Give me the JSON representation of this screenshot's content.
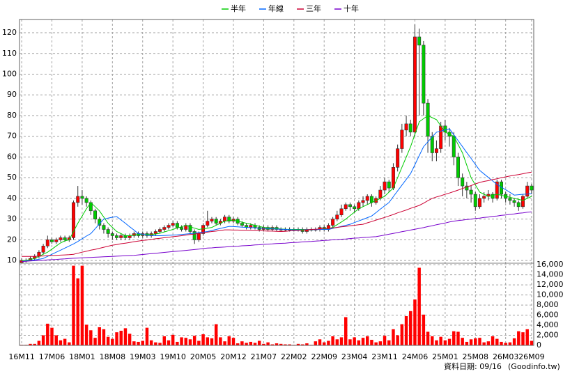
{
  "chart_data": {
    "type": "candlestick",
    "categories": [
      "16M11",
      null,
      null,
      null,
      null,
      null,
      null,
      "17M06",
      null,
      null,
      null,
      null,
      null,
      null,
      "18M01",
      null,
      null,
      null,
      null,
      null,
      null,
      "18M08",
      null,
      null,
      null,
      null,
      null,
      null,
      "19M03",
      null,
      null,
      null,
      null,
      null,
      null,
      "19M10",
      null,
      null,
      null,
      null,
      null,
      null,
      "20M05",
      null,
      null,
      null,
      null,
      null,
      null,
      "20M12",
      null,
      null,
      null,
      null,
      null,
      null,
      "21M07",
      null,
      null,
      null,
      null,
      null,
      null,
      "22M02",
      null,
      null,
      null,
      null,
      null,
      null,
      "22M09",
      null,
      null,
      null,
      null,
      null,
      null,
      "23M04",
      null,
      null,
      null,
      null,
      null,
      null,
      "23M11",
      null,
      null,
      null,
      null,
      null,
      null,
      "24M06",
      null,
      null,
      null,
      null,
      null,
      null,
      "25M01",
      null,
      null,
      null,
      null,
      null,
      null,
      "25M08",
      null,
      null,
      null,
      null,
      null,
      null,
      "26M03",
      null,
      null,
      null,
      null,
      null,
      "26M09"
    ],
    "open": [
      9,
      10,
      10,
      11,
      12,
      14,
      17,
      20,
      19,
      20,
      21,
      20,
      21,
      38,
      41,
      40,
      38,
      34,
      30,
      27,
      25,
      23,
      22,
      21,
      22,
      21,
      22,
      23,
      22,
      23,
      22,
      23,
      24,
      25,
      26,
      27,
      28,
      26,
      25,
      27,
      24,
      20,
      23,
      27,
      29,
      30,
      28,
      29,
      31,
      29,
      30,
      28,
      27,
      26,
      27,
      26,
      25,
      26,
      25,
      26,
      25,
      25,
      25,
      25,
      25,
      25,
      24,
      25,
      25,
      25,
      26,
      25,
      27,
      30,
      32,
      35,
      37,
      36,
      35,
      38,
      39,
      41,
      38,
      40,
      44,
      48,
      45,
      55,
      64,
      73,
      76,
      72,
      118,
      114,
      86,
      70,
      62,
      64,
      75,
      72,
      70,
      60,
      50,
      46,
      44,
      42,
      36,
      40,
      41,
      42,
      40,
      48,
      42,
      40,
      39,
      38,
      36,
      41,
      46
    ],
    "high": [
      11,
      11,
      12,
      13,
      15,
      18,
      22,
      21,
      21,
      22,
      22,
      22,
      39,
      46,
      44,
      41,
      39,
      35,
      31,
      28,
      26,
      24,
      23,
      23,
      23,
      23,
      24,
      24,
      24,
      24,
      24,
      25,
      26,
      27,
      28,
      29,
      29,
      27,
      28,
      28,
      25,
      24,
      28,
      34,
      31,
      31,
      30,
      32,
      32,
      31,
      31,
      29,
      28,
      28,
      28,
      27,
      27,
      27,
      27,
      27,
      26,
      26,
      26,
      26,
      26,
      26,
      26,
      26,
      26,
      27,
      27,
      28,
      31,
      34,
      37,
      38,
      38,
      37,
      39,
      41,
      42,
      42,
      41,
      46,
      50,
      49,
      57,
      66,
      76,
      80,
      78,
      124,
      122,
      116,
      88,
      72,
      68,
      77,
      78,
      74,
      72,
      62,
      52,
      48,
      46,
      43,
      42,
      43,
      44,
      43,
      49,
      49,
      43,
      42,
      40,
      39,
      42,
      48,
      47
    ],
    "low": [
      9,
      9,
      10,
      10,
      11,
      13,
      16,
      18,
      18,
      19,
      19,
      19,
      20,
      36,
      37,
      36,
      32,
      28,
      25,
      23,
      21,
      20,
      20,
      20,
      20,
      20,
      21,
      21,
      21,
      21,
      21,
      22,
      23,
      24,
      25,
      26,
      25,
      24,
      24,
      23,
      18,
      19,
      22,
      26,
      28,
      27,
      27,
      28,
      28,
      28,
      27,
      26,
      25,
      25,
      25,
      24,
      24,
      24,
      24,
      24,
      24,
      24,
      24,
      24,
      24,
      23,
      23,
      24,
      24,
      24,
      24,
      24,
      26,
      29,
      31,
      34,
      34,
      33,
      34,
      36,
      37,
      36,
      37,
      39,
      42,
      43,
      44,
      53,
      62,
      70,
      70,
      70,
      80,
      80,
      62,
      58,
      58,
      62,
      68,
      65,
      56,
      46,
      41,
      40,
      38,
      34,
      35,
      38,
      39,
      38,
      39,
      40,
      38,
      37,
      36,
      34,
      35,
      40,
      42
    ],
    "close": [
      10,
      10,
      11,
      12,
      14,
      17,
      20,
      19,
      20,
      21,
      20,
      21,
      38,
      41,
      40,
      38,
      34,
      30,
      27,
      25,
      23,
      22,
      21,
      22,
      21,
      22,
      23,
      22,
      23,
      22,
      23,
      24,
      25,
      26,
      27,
      28,
      26,
      25,
      27,
      24,
      20,
      23,
      27,
      29,
      30,
      28,
      29,
      31,
      29,
      30,
      28,
      27,
      26,
      27,
      26,
      25,
      26,
      25,
      26,
      25,
      25,
      25,
      25,
      25,
      25,
      24,
      25,
      25,
      25,
      26,
      25,
      27,
      30,
      32,
      35,
      37,
      36,
      35,
      38,
      39,
      41,
      38,
      40,
      44,
      48,
      45,
      55,
      64,
      73,
      76,
      72,
      118,
      114,
      86,
      70,
      62,
      64,
      75,
      72,
      70,
      60,
      50,
      46,
      44,
      42,
      36,
      40,
      41,
      42,
      40,
      48,
      42,
      40,
      39,
      38,
      36,
      41,
      46,
      44
    ],
    "up_color": "#ff0000",
    "down_color": "#00cc00",
    "series": [
      {
        "name": "半年",
        "color": "#00cc00",
        "values": [
          10,
          10,
          10.5,
          11,
          12,
          13,
          14,
          15.5,
          17,
          18.5,
          19.5,
          20,
          24,
          28,
          31.5,
          35,
          38,
          36,
          34,
          31,
          28,
          26,
          24,
          23,
          22,
          22,
          22.3,
          22.5,
          22.5,
          22.5,
          22.6,
          22.8,
          23.2,
          23.8,
          24.4,
          25,
          25.7,
          26.3,
          27,
          26.3,
          25.6,
          25,
          25.3,
          25.6,
          26,
          27,
          28,
          29,
          29.3,
          29.5,
          29,
          28.5,
          28,
          27.5,
          27,
          26.5,
          26,
          25.8,
          25.6,
          25.4,
          25.2,
          25.1,
          25,
          25,
          25,
          25,
          24.9,
          24.9,
          25,
          25,
          25,
          25.5,
          26,
          27.3,
          28.6,
          30,
          31.7,
          33.3,
          35,
          36,
          37,
          38,
          39,
          40,
          41,
          43,
          45,
          50,
          55,
          60,
          65,
          71,
          77,
          78.5,
          80,
          79,
          78,
          75,
          72,
          71,
          70,
          66,
          62,
          56,
          50,
          46.5,
          43,
          42,
          41,
          41.5,
          42,
          41.5,
          41,
          40.5,
          40,
          39.5,
          39,
          40,
          41
        ]
      },
      {
        "name": "年線",
        "color": "#0066ff",
        "values": [
          9.5,
          9.8,
          10,
          10.3,
          10.6,
          11,
          12,
          13,
          14,
          15,
          16,
          17,
          18,
          19.2,
          20.5,
          21.8,
          23,
          25.3,
          27.7,
          30,
          30.5,
          30.9,
          31.2,
          29.6,
          28,
          26.3,
          24.7,
          23,
          22.7,
          22.3,
          22,
          22,
          22,
          22.1,
          22.2,
          22.3,
          22.4,
          22.6,
          22.8,
          23,
          23.2,
          23.5,
          23.7,
          24,
          24.5,
          25,
          25.5,
          26,
          26.5,
          26.4,
          26.3,
          26.1,
          26,
          25.9,
          25.8,
          25.6,
          25.5,
          25.4,
          25.3,
          25.2,
          25.1,
          25,
          24.9,
          24.8,
          24.8,
          24.8,
          24.9,
          24.9,
          24.9,
          25,
          25,
          25,
          25.5,
          26,
          26.5,
          27,
          27.5,
          28.3,
          29.1,
          29.9,
          30.7,
          31.5,
          33.1,
          34.8,
          36.4,
          38,
          40.8,
          43.6,
          46.4,
          49.2,
          52,
          56.3,
          60.7,
          65,
          67.3,
          69.7,
          72,
          72.5,
          73.1,
          73.6,
          70.7,
          67.9,
          65,
          62.1,
          59.3,
          56.4,
          53.5,
          51.8,
          50.1,
          48.4,
          46.7,
          45.4,
          44.2,
          42.9,
          41.6,
          41.8,
          42,
          42.1,
          42.3
        ]
      },
      {
        "name": "三年",
        "color": "#cc0033",
        "values": [
          12,
          12,
          12,
          12,
          12.1,
          12.2,
          12.3,
          12.4,
          12.5,
          12.6,
          12.7,
          12.8,
          13,
          13.5,
          14,
          14.5,
          15,
          15.4,
          15.9,
          16.4,
          16.9,
          17.4,
          17.7,
          18.1,
          18.4,
          18.7,
          19.1,
          19.4,
          19.7,
          19.9,
          20.2,
          20.5,
          20.7,
          21,
          21.2,
          21.5,
          21.7,
          22,
          22.3,
          22.6,
          22.8,
          23.1,
          23.4,
          23.7,
          24,
          24.2,
          24.5,
          24.8,
          24.8,
          24.7,
          24.7,
          24.6,
          24.6,
          24.5,
          24.4,
          24.4,
          24.3,
          24.2,
          24.2,
          24.1,
          24,
          24.1,
          24.3,
          24.4,
          24.5,
          24.7,
          24.8,
          25,
          25.1,
          25.2,
          25.4,
          25.5,
          25.8,
          26,
          26.3,
          26.5,
          26.8,
          27,
          27.3,
          27.5,
          28.2,
          28.8,
          29.5,
          30.2,
          30.8,
          31.5,
          32.2,
          33,
          33.7,
          34.4,
          35.2,
          35.9,
          36.6,
          37.7,
          38.9,
          40,
          40.7,
          41.3,
          42,
          42.6,
          43.3,
          44,
          44.8,
          45.5,
          46.2,
          47,
          47.7,
          48.2,
          48.6,
          49.1,
          49.5,
          50,
          50.4,
          50.8,
          51.2,
          51.5,
          51.9,
          52.3,
          52.7
        ]
      },
      {
        "name": "十年",
        "color": "#7700cc",
        "values": [
          9.5,
          9.6,
          9.8,
          9.9,
          10,
          10.1,
          10.3,
          10.4,
          10.5,
          10.7,
          10.8,
          11,
          11.1,
          11.2,
          11.3,
          11.4,
          11.5,
          11.6,
          11.7,
          11.8,
          11.9,
          12,
          12.1,
          12.2,
          12.3,
          12.4,
          12.5,
          12.7,
          12.9,
          13.1,
          13.3,
          13.5,
          13.7,
          13.9,
          14.1,
          14.3,
          14.5,
          14.7,
          14.9,
          15.1,
          15.3,
          15.5,
          15.8,
          16,
          16.1,
          16.3,
          16.4,
          16.5,
          16.7,
          16.8,
          16.9,
          17.1,
          17.2,
          17.3,
          17.5,
          17.6,
          17.8,
          17.9,
          18,
          18.2,
          18.3,
          18.4,
          18.6,
          18.7,
          18.8,
          19,
          19.1,
          19.2,
          19.4,
          19.5,
          19.7,
          19.8,
          20,
          20.1,
          20.3,
          20.4,
          20.6,
          20.8,
          20.9,
          21.1,
          21.2,
          21.4,
          21.5,
          21.9,
          22.3,
          22.7,
          23.1,
          23.5,
          23.9,
          24.3,
          24.7,
          25.1,
          25.5,
          25.9,
          26.4,
          26.8,
          27.3,
          27.7,
          28.1,
          28.6,
          29,
          29.3,
          29.5,
          29.8,
          30,
          30.3,
          30.5,
          30.8,
          31,
          31.3,
          31.5,
          31.8,
          32,
          32.3,
          32.5,
          32.8,
          33,
          33.3,
          33.5
        ]
      }
    ],
    "ylim": [
      8.7,
      126.4
    ],
    "yticks": [
      10,
      20,
      30,
      40,
      50,
      60,
      70,
      80,
      90,
      100,
      110,
      120
    ],
    "grid": true,
    "volume": {
      "color": "#ff0000",
      "values": [
        100,
        100,
        300,
        300,
        900,
        2000,
        4300,
        3500,
        2000,
        1000,
        1300,
        600,
        15800,
        13300,
        15800,
        4100,
        3000,
        1500,
        3600,
        3200,
        1700,
        1300,
        2600,
        2900,
        3400,
        2300,
        800,
        700,
        900,
        3500,
        1000,
        600,
        500,
        1800,
        1000,
        2100,
        700,
        1600,
        1500,
        1200,
        1900,
        900,
        2200,
        1600,
        1400,
        4200,
        1600,
        800,
        1800,
        1500,
        400,
        800,
        500,
        700,
        500,
        900,
        300,
        600,
        200,
        400,
        300,
        200,
        200,
        100,
        300,
        200,
        400,
        100,
        800,
        1200,
        600,
        900,
        1800,
        1200,
        1600,
        5600,
        1200,
        1600,
        1000,
        1500,
        1800,
        1100,
        600,
        800,
        1900,
        1000,
        3200,
        2000,
        4200,
        5800,
        6800,
        9100,
        15400,
        6100,
        2700,
        1800,
        1000,
        1700,
        1000,
        1300,
        2800,
        2700,
        1500,
        700,
        1200,
        1400,
        1500,
        600,
        800,
        1800,
        1300,
        700,
        500,
        600,
        1400,
        2800,
        2600,
        3200,
        900
      ],
      "ylim": [
        0,
        16300
      ],
      "yticks": [
        0,
        {
          "value": 2000,
          "label": "2,000"
        },
        {
          "value": 4000,
          "label": "4,000"
        },
        {
          "value": 6000,
          "label": "6,000"
        },
        {
          "value": 8000,
          "label": "8,000"
        },
        {
          "value": 10000,
          "label": "10,000"
        },
        {
          "value": 12000,
          "label": "12,000"
        },
        {
          "value": 14000,
          "label": "14,000"
        },
        {
          "value": 16000,
          "label": "16,000"
        }
      ]
    },
    "date_label": "資料日期: 09/16",
    "source": "(Goodinfo.tw)"
  }
}
